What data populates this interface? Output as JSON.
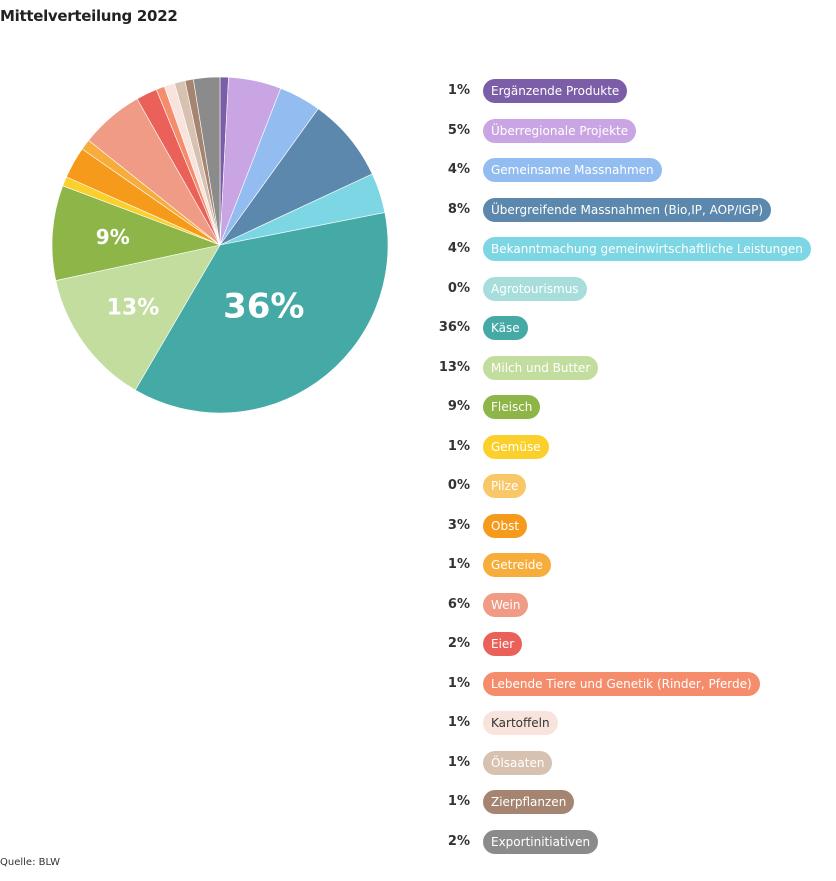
{
  "title": "Mittelverteilung 2022",
  "source": "Quelle: BLW",
  "chart_data": {
    "type": "pie",
    "title": "Mittelverteilung 2022",
    "slices": [
      {
        "label": "Ergänzende Produkte",
        "value": 0.8,
        "pct_label": "1%",
        "color": "#7b5ea7",
        "text_color": "#ffffff"
      },
      {
        "label": "Überregionale Projekte",
        "value": 5,
        "pct_label": "5%",
        "color": "#c9a5e3",
        "text_color": "#ffffff"
      },
      {
        "label": "Gemeinsame Massnahmen",
        "value": 4,
        "pct_label": "4%",
        "color": "#93bdf0",
        "text_color": "#ffffff"
      },
      {
        "label": "Übergreifende Massnahmen (Bio,IP, AOP/IGP)",
        "value": 8,
        "pct_label": "8%",
        "color": "#5b88ac",
        "text_color": "#ffffff"
      },
      {
        "label": "Bekanntmachung gemeinwirtschaftliche Leistungen",
        "value": 3.8,
        "pct_label": "4%",
        "color": "#7dd6e3",
        "text_color": "#ffffff"
      },
      {
        "label": "Agrotourismus",
        "value": 0,
        "pct_label": "0%",
        "color": "#a7dedc",
        "text_color": "#ffffff"
      },
      {
        "label": "Käse",
        "value": 36,
        "pct_label": "36%",
        "color": "#45aaa6",
        "text_color": "#ffffff"
      },
      {
        "label": "Milch und Butter",
        "value": 13,
        "pct_label": "13%",
        "color": "#c2dd9e",
        "text_color": "#ffffff"
      },
      {
        "label": "Fleisch",
        "value": 9,
        "pct_label": "9%",
        "color": "#8db548",
        "text_color": "#ffffff"
      },
      {
        "label": "Gemüse",
        "value": 0.9,
        "pct_label": "1%",
        "color": "#fcd02c",
        "text_color": "#ffffff"
      },
      {
        "label": "Pilze",
        "value": 0,
        "pct_label": "0%",
        "color": "#f8c868",
        "text_color": "#ffffff"
      },
      {
        "label": "Obst",
        "value": 3,
        "pct_label": "3%",
        "color": "#f59a1a",
        "text_color": "#ffffff"
      },
      {
        "label": "Getreide",
        "value": 1,
        "pct_label": "1%",
        "color": "#f7ad3c",
        "text_color": "#ffffff"
      },
      {
        "label": "Wein",
        "value": 6,
        "pct_label": "6%",
        "color": "#f09b85",
        "text_color": "#ffffff"
      },
      {
        "label": "Eier",
        "value": 2,
        "pct_label": "2%",
        "color": "#ea6159",
        "text_color": "#ffffff"
      },
      {
        "label": "Lebende Tiere und Genetik (Rinder, Pferde)",
        "value": 0.8,
        "pct_label": "1%",
        "color": "#f58d6c",
        "text_color": "#ffffff"
      },
      {
        "label": "Kartoffeln",
        "value": 1,
        "pct_label": "1%",
        "color": "#f8e4dc",
        "text_color": "#333333"
      },
      {
        "label": "Ölsaaten",
        "value": 1,
        "pct_label": "1%",
        "color": "#d7c1b1",
        "text_color": "#ffffff"
      },
      {
        "label": "Zierpflanzen",
        "value": 0.8,
        "pct_label": "1%",
        "color": "#a58572",
        "text_color": "#ffffff"
      },
      {
        "label": "Exportinitiativen",
        "value": 2.5,
        "pct_label": "2%",
        "color": "#8b8b8b",
        "text_color": "#ffffff"
      }
    ],
    "slice_labels_shown": [
      "Käse",
      "Milch und Butter",
      "Fleisch"
    ],
    "legend_position": "right"
  }
}
